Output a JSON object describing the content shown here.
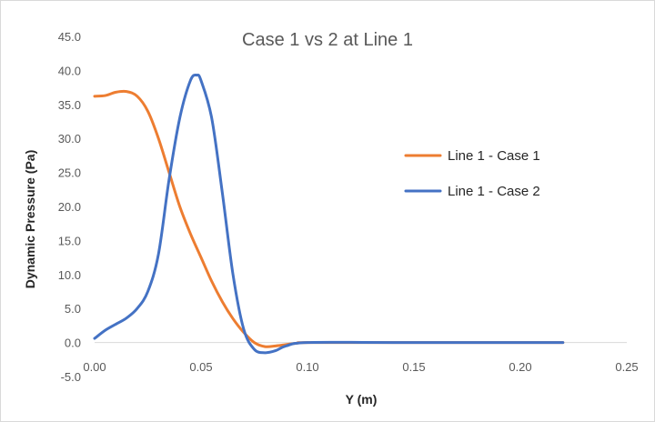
{
  "chart_data": {
    "type": "line",
    "title": "Case 1 vs 2 at Line 1",
    "xlabel": "Y (m)",
    "ylabel": "Dynamic Pressure (Pa)",
    "xlim": [
      0,
      0.25
    ],
    "ylim": [
      -5,
      45
    ],
    "xticks": [
      0,
      0.05,
      0.1,
      0.15,
      0.2,
      0.25
    ],
    "xtick_labels": [
      "0.00",
      "0.05",
      "0.10",
      "0.15",
      "0.20",
      "0.25"
    ],
    "yticks": [
      -5,
      0,
      5,
      10,
      15,
      20,
      25,
      30,
      35,
      40,
      45
    ],
    "ytick_labels": [
      "-5.0",
      "0.0",
      "5.0",
      "10.0",
      "15.0",
      "20.0",
      "25.0",
      "30.0",
      "35.0",
      "40.0",
      "45.0"
    ],
    "grid": false,
    "legend_position": "right",
    "series": [
      {
        "name": "Line 1 - Case 1",
        "color": "#ED7D31",
        "x": [
          0.0,
          0.005,
          0.01,
          0.015,
          0.02,
          0.025,
          0.03,
          0.035,
          0.04,
          0.045,
          0.05,
          0.055,
          0.06,
          0.065,
          0.07,
          0.075,
          0.08,
          0.085,
          0.09,
          0.095,
          0.1,
          0.14,
          0.22
        ],
        "y": [
          36.2,
          36.3,
          36.8,
          36.9,
          36.2,
          34.0,
          30.0,
          25.0,
          20.0,
          16.0,
          12.5,
          9.0,
          6.0,
          3.5,
          1.5,
          0.0,
          -0.6,
          -0.5,
          -0.3,
          -0.1,
          0.0,
          0.0,
          0.0
        ]
      },
      {
        "name": "Line 1 - Case 2",
        "color": "#4472C4",
        "x": [
          0.0,
          0.005,
          0.01,
          0.015,
          0.02,
          0.025,
          0.03,
          0.035,
          0.04,
          0.045,
          0.048,
          0.05,
          0.055,
          0.06,
          0.065,
          0.07,
          0.075,
          0.08,
          0.085,
          0.09,
          0.1,
          0.14,
          0.22
        ],
        "y": [
          0.6,
          1.8,
          2.7,
          3.6,
          5.0,
          7.5,
          13.0,
          24.0,
          33.0,
          38.5,
          39.3,
          38.5,
          33.0,
          22.0,
          10.0,
          2.0,
          -1.0,
          -1.5,
          -1.2,
          -0.5,
          0.0,
          0.0,
          0.0
        ]
      }
    ]
  }
}
